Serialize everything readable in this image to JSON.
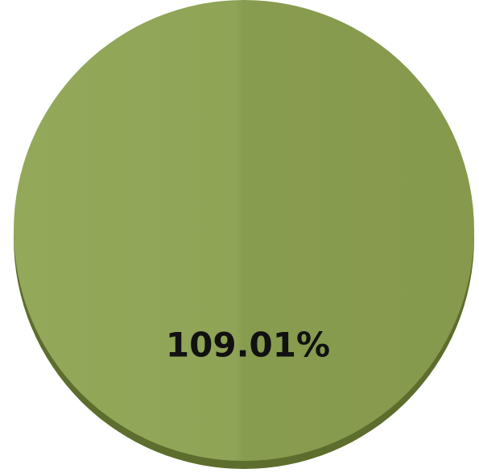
{
  "chart_data": {
    "type": "pie",
    "categories": [
      ""
    ],
    "values": [
      109.01
    ],
    "data_labels": [
      "109.01%"
    ],
    "colors": [
      "#8a9e50"
    ]
  }
}
